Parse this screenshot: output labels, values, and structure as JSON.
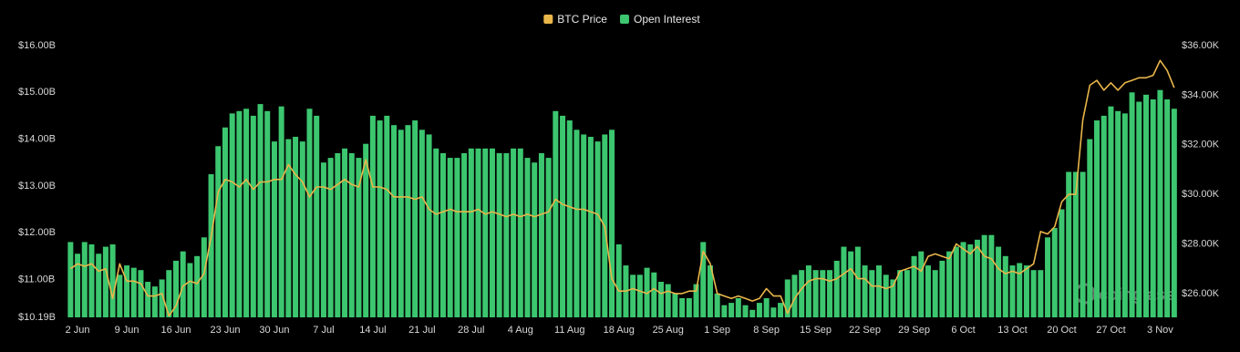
{
  "chart_data": {
    "type": "bar",
    "watermark": "coinglass",
    "categories": [
      null,
      "2 Jun",
      null,
      null,
      null,
      null,
      null,
      null,
      "9 Jun",
      null,
      null,
      null,
      null,
      null,
      null,
      "16 Jun",
      null,
      null,
      null,
      null,
      null,
      null,
      "23 Jun",
      null,
      null,
      null,
      null,
      null,
      null,
      "30 Jun",
      null,
      null,
      null,
      null,
      null,
      null,
      "7 Jul",
      null,
      null,
      null,
      null,
      null,
      null,
      "14 Jul",
      null,
      null,
      null,
      null,
      null,
      null,
      "21 Jul",
      null,
      null,
      null,
      null,
      null,
      null,
      "28 Jul",
      null,
      null,
      null,
      null,
      null,
      null,
      "4 Aug",
      null,
      null,
      null,
      null,
      null,
      null,
      "11 Aug",
      null,
      null,
      null,
      null,
      null,
      null,
      "18 Aug",
      null,
      null,
      null,
      null,
      null,
      null,
      "25 Aug",
      null,
      null,
      null,
      null,
      null,
      null,
      "1 Sep",
      null,
      null,
      null,
      null,
      null,
      null,
      "8 Sep",
      null,
      null,
      null,
      null,
      null,
      null,
      "15 Sep",
      null,
      null,
      null,
      null,
      null,
      null,
      "22 Sep",
      null,
      null,
      null,
      null,
      null,
      null,
      "29 Sep",
      null,
      null,
      null,
      null,
      null,
      null,
      "6 Oct",
      null,
      null,
      null,
      null,
      null,
      null,
      "13 Oct",
      null,
      null,
      null,
      null,
      null,
      null,
      "20 Oct",
      null,
      null,
      null,
      null,
      null,
      null,
      "27 Oct",
      null,
      null,
      null,
      null,
      null,
      null,
      "3 Nov",
      null,
      null
    ],
    "series": [
      {
        "name": "BTC Price",
        "type": "line",
        "axis": "y2",
        "color": "#e9b64a",
        "values": [
          27.0,
          27.2,
          27.1,
          27.2,
          26.9,
          27.0,
          25.8,
          27.2,
          26.5,
          26.5,
          26.4,
          25.9,
          25.9,
          26.0,
          25.1,
          25.5,
          26.3,
          26.5,
          26.4,
          26.8,
          28.3,
          30.1,
          30.6,
          30.5,
          30.3,
          30.6,
          30.2,
          30.5,
          30.5,
          30.6,
          30.6,
          31.2,
          30.8,
          30.5,
          29.9,
          30.3,
          30.3,
          30.2,
          30.4,
          30.6,
          30.4,
          30.3,
          31.4,
          30.3,
          30.3,
          30.2,
          29.9,
          29.9,
          29.9,
          29.8,
          29.9,
          29.4,
          29.2,
          29.3,
          29.4,
          29.3,
          29.3,
          29.3,
          29.4,
          29.2,
          29.3,
          29.2,
          29.1,
          29.2,
          29.1,
          29.2,
          29.1,
          29.2,
          29.3,
          29.8,
          29.6,
          29.5,
          29.4,
          29.4,
          29.3,
          29.2,
          28.7,
          26.6,
          26.1,
          26.1,
          26.2,
          26.1,
          26.0,
          26.2,
          26.0,
          26.1,
          26.0,
          26.0,
          26.1,
          26.1,
          27.7,
          27.2,
          26.0,
          25.9,
          25.8,
          25.9,
          25.8,
          25.7,
          25.8,
          26.2,
          25.9,
          25.9,
          25.2,
          25.8,
          26.2,
          26.5,
          26.6,
          26.6,
          26.5,
          26.6,
          26.8,
          27.0,
          26.6,
          26.6,
          26.3,
          26.3,
          26.2,
          26.3,
          26.9,
          27.0,
          27.1,
          26.9,
          27.5,
          27.6,
          27.5,
          27.4,
          28.0,
          27.8,
          27.6,
          27.9,
          27.5,
          27.4,
          27.0,
          26.8,
          26.9,
          26.8,
          27.0,
          27.2,
          28.5,
          28.4,
          28.7,
          29.7,
          30.0,
          30.0,
          33.0,
          34.4,
          34.6,
          34.2,
          34.5,
          34.2,
          34.5,
          34.6,
          34.7,
          34.7,
          34.8,
          35.4,
          35.0,
          34.3
        ]
      },
      {
        "name": "Open Interest",
        "type": "bar",
        "color": "#3cc66f",
        "values": [
          11.8,
          11.55,
          11.8,
          11.75,
          11.55,
          11.7,
          11.75,
          11.1,
          11.3,
          11.25,
          11.2,
          10.95,
          10.85,
          11.0,
          11.2,
          11.4,
          11.6,
          11.35,
          11.5,
          11.9,
          13.25,
          13.85,
          14.25,
          14.55,
          14.6,
          14.65,
          14.5,
          14.75,
          14.6,
          13.95,
          14.7,
          14.0,
          14.05,
          13.95,
          14.65,
          14.5,
          13.5,
          13.6,
          13.7,
          13.8,
          13.7,
          13.6,
          13.9,
          14.5,
          14.4,
          14.5,
          14.3,
          14.2,
          14.3,
          14.4,
          14.2,
          14.1,
          13.8,
          13.7,
          13.6,
          13.6,
          13.7,
          13.8,
          13.8,
          13.8,
          13.8,
          13.7,
          13.7,
          13.8,
          13.8,
          13.6,
          13.5,
          13.7,
          13.6,
          14.6,
          14.5,
          14.4,
          14.2,
          14.1,
          14.05,
          13.95,
          14.1,
          14.2,
          11.75,
          11.3,
          11.1,
          11.1,
          11.25,
          11.15,
          10.95,
          10.9,
          10.7,
          10.6,
          10.6,
          10.9,
          11.8,
          11.3,
          10.7,
          10.45,
          10.5,
          10.6,
          10.45,
          10.35,
          10.5,
          10.6,
          10.4,
          10.5,
          11.0,
          11.1,
          11.2,
          11.3,
          11.2,
          11.2,
          11.2,
          11.4,
          11.7,
          11.6,
          11.7,
          11.3,
          11.2,
          11.3,
          11.1,
          11.0,
          11.2,
          11.2,
          11.5,
          11.6,
          11.3,
          11.2,
          11.4,
          11.6,
          11.7,
          11.8,
          11.75,
          11.85,
          11.95,
          11.95,
          11.7,
          11.5,
          11.3,
          11.35,
          11.3,
          11.2,
          11.2,
          11.9,
          12.1,
          12.5,
          13.3,
          13.3,
          13.3,
          14.0,
          14.4,
          14.5,
          14.7,
          14.6,
          14.55,
          15.0,
          14.8,
          14.95,
          14.85,
          15.05,
          14.85,
          14.65
        ]
      }
    ],
    "ylim": [
      10.19,
      16.0
    ],
    "yticks": [
      {
        "value": 10.19,
        "label": "$10.19B"
      },
      {
        "value": 11,
        "label": "$11.00B"
      },
      {
        "value": 12,
        "label": "$12.00B"
      },
      {
        "value": 13,
        "label": "$13.00B"
      },
      {
        "value": 14,
        "label": "$14.00B"
      },
      {
        "value": 15,
        "label": "$15.00B"
      },
      {
        "value": 16,
        "label": "$16.00B"
      }
    ],
    "y2lim": [
      25.04,
      36.0
    ],
    "y2ticks": [
      {
        "value": 26,
        "label": "$26.00K"
      },
      {
        "value": 28,
        "label": "$28.00K"
      },
      {
        "value": 30,
        "label": "$30.00K"
      },
      {
        "value": 32,
        "label": "$32.00K"
      },
      {
        "value": 34,
        "label": "$34.00K"
      },
      {
        "value": 36,
        "label": "$36.00K"
      }
    ],
    "grid": false,
    "legend": "top"
  }
}
